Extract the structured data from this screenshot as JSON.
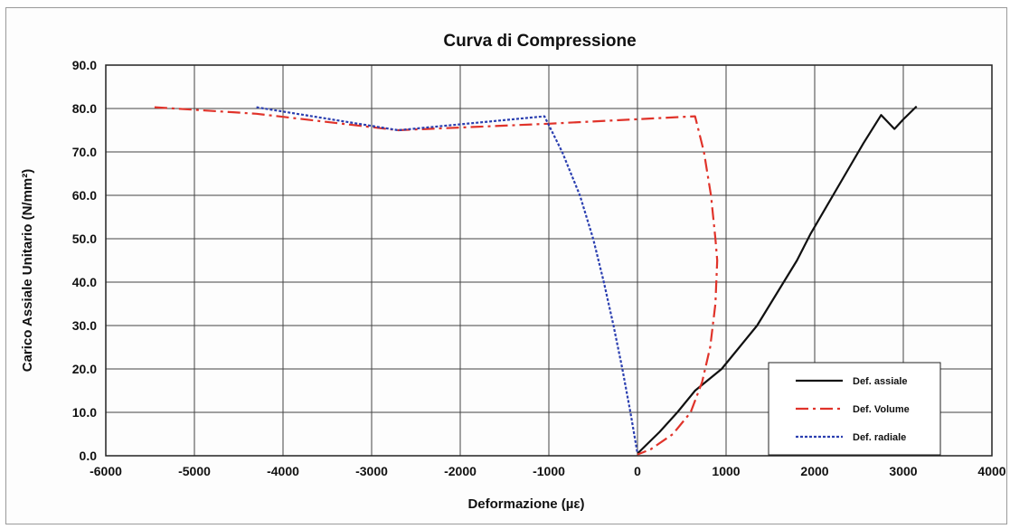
{
  "chart_data": {
    "type": "line",
    "title": "Curva di Compressione",
    "xlabel": "Deformazione (µε)",
    "ylabel": "Carico Assiale Unitario (N/mm²)",
    "xlim": [
      -6000,
      4000
    ],
    "ylim": [
      0,
      90
    ],
    "x_ticks": [
      "-6000",
      "-5000",
      "-4000",
      "-3000",
      "-2000",
      "-1000",
      "0",
      "1000",
      "2000",
      "3000",
      "4000"
    ],
    "y_ticks": [
      "0.0",
      "10.0",
      "20.0",
      "30.0",
      "40.0",
      "50.0",
      "60.0",
      "70.0",
      "80.0",
      "90.0"
    ],
    "x_tick_values": [
      -6000,
      -5000,
      -4000,
      -3000,
      -2000,
      -1000,
      0,
      1000,
      2000,
      3000,
      4000
    ],
    "y_tick_values": [
      0,
      10,
      20,
      30,
      40,
      50,
      60,
      70,
      80,
      90
    ],
    "grid": true,
    "legend_position": "bottom-right",
    "series": [
      {
        "name": "Def. assiale",
        "color": "#111111",
        "style": "solid",
        "points": [
          [
            0,
            0.5
          ],
          [
            100,
            2.5
          ],
          [
            250,
            5.5
          ],
          [
            450,
            10
          ],
          [
            650,
            15
          ],
          [
            950,
            20
          ],
          [
            1150,
            25
          ],
          [
            1350,
            30
          ],
          [
            1500,
            35
          ],
          [
            1650,
            40
          ],
          [
            1800,
            45
          ],
          [
            1950,
            51
          ],
          [
            2150,
            58
          ],
          [
            2350,
            65
          ],
          [
            2550,
            72
          ],
          [
            2750,
            78.5
          ],
          [
            2900,
            75.3
          ],
          [
            3000,
            77.5
          ],
          [
            3150,
            80.5
          ]
        ]
      },
      {
        "name": "Def. Volume",
        "color": "#e0332a",
        "style": "dashdot",
        "points": [
          [
            -5450,
            80.3
          ],
          [
            -4300,
            78.8
          ],
          [
            -2700,
            75
          ],
          [
            -1000,
            76.5
          ],
          [
            650,
            78.2
          ],
          [
            750,
            70
          ],
          [
            830,
            60
          ],
          [
            880,
            50
          ],
          [
            900,
            45
          ],
          [
            880,
            35
          ],
          [
            820,
            25
          ],
          [
            730,
            17
          ],
          [
            600,
            10
          ],
          [
            400,
            5
          ],
          [
            150,
            1.5
          ],
          [
            0,
            0.3
          ]
        ]
      },
      {
        "name": "Def. radiale",
        "color": "#2b3fb0",
        "style": "dotted",
        "points": [
          [
            -4300,
            80.3
          ],
          [
            -2700,
            75
          ],
          [
            -1050,
            78.2
          ],
          [
            -850,
            70
          ],
          [
            -650,
            60
          ],
          [
            -500,
            50
          ],
          [
            -380,
            40
          ],
          [
            -270,
            30
          ],
          [
            -170,
            20
          ],
          [
            -80,
            10
          ],
          [
            -20,
            3
          ],
          [
            0,
            0.5
          ]
        ]
      }
    ]
  }
}
